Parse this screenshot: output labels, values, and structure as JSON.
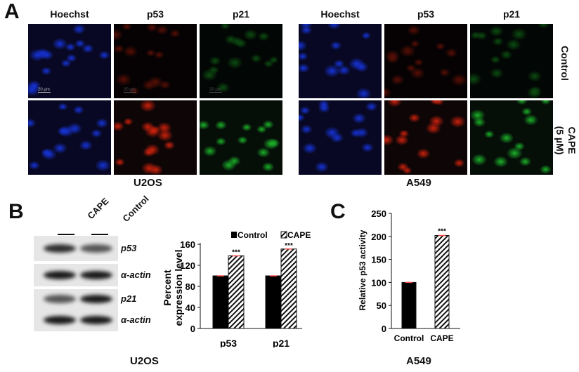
{
  "panelA": {
    "label": "A",
    "groups": [
      {
        "cell_line": "U2OS",
        "columns": [
          "Hoechst",
          "p53",
          "p21"
        ],
        "scale_bar": "20 µm"
      },
      {
        "cell_line": "A549",
        "columns": [
          "Hoechst",
          "p53",
          "p21"
        ]
      }
    ],
    "rows": [
      "Control",
      "CAPE\n(5 µM)"
    ],
    "row_control": "Control",
    "row_cape": "CAPE",
    "row_cape_dose": "(5 µM)"
  },
  "panelB": {
    "label": "B",
    "lanes": [
      "CAPE",
      "Control"
    ],
    "blots": [
      "p53",
      "α-actin",
      "p21",
      "α-actin"
    ],
    "cell_line": "U2OS"
  },
  "panelC": {
    "label": "C",
    "cell_line": "A549"
  },
  "colors": {
    "control": "#000000",
    "hoechst": "#1a3cff",
    "p53": "#ff2a10",
    "p21": "#22dd33",
    "error": "#ff4d4d"
  },
  "chart_data": [
    {
      "type": "bar",
      "ylabel": "Percent expression level",
      "categories": [
        "p53",
        "p21"
      ],
      "ylim": [
        0,
        160
      ],
      "yticks": [
        0,
        40,
        80,
        120,
        160
      ],
      "series": [
        {
          "name": "Control",
          "pattern": "solid",
          "values": [
            100,
            100
          ]
        },
        {
          "name": "CAPE",
          "pattern": "hatched",
          "values": [
            138,
            151
          ]
        }
      ],
      "annotations": [
        "***",
        "***"
      ],
      "legend": "top"
    },
    {
      "type": "bar",
      "ylabel": "Relative p53 activity",
      "categories": [
        "Control",
        "CAPE"
      ],
      "ylim": [
        0,
        250
      ],
      "yticks": [
        0,
        50,
        100,
        150,
        200,
        250
      ],
      "values": [
        100,
        202
      ],
      "patterns": [
        "solid",
        "hatched"
      ],
      "annotations": [
        "",
        "***"
      ]
    }
  ]
}
